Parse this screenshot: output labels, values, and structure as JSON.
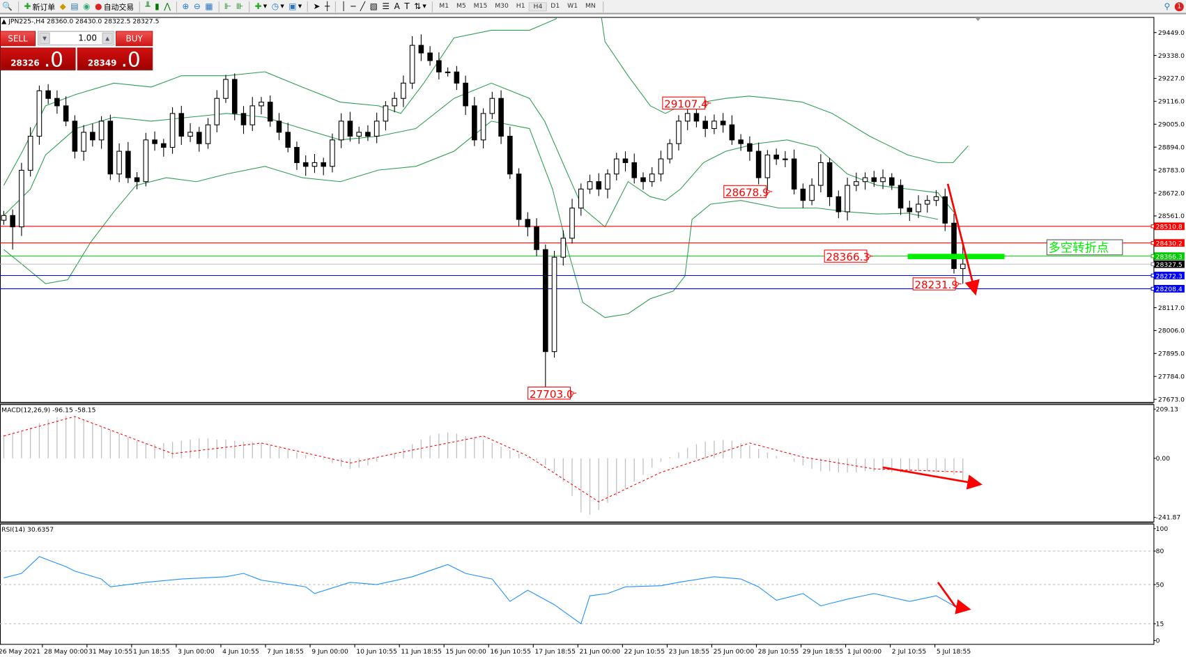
{
  "toolbar": {
    "new_order": "新订单",
    "auto_trading": "自动交易",
    "timeframes": [
      "M1",
      "M5",
      "M15",
      "M30",
      "H1",
      "H4",
      "D1",
      "W1",
      "MN"
    ],
    "active_timeframe": "H4",
    "text_tool": "A",
    "notification_count": "1"
  },
  "header": {
    "symbol": "JPN225-,H4",
    "open": "28360.0",
    "high": "28430.0",
    "low": "28322.5",
    "close": "28327.5"
  },
  "one_click": {
    "sell_label": "SELL",
    "buy_label": "BUY",
    "lot": "1.00",
    "sell_main": "28326",
    "sell_frac": ".0",
    "buy_main": "28349",
    "buy_frac": ".0"
  },
  "colors": {
    "bull_bear_candle": "#000000",
    "bands": "#2e9e4f",
    "red_line": "#ff0000",
    "green_line": "#00cc00",
    "blue_line": "#0000ff",
    "macd_hist": "#c0c0c0",
    "macd_signal": "#ff0000",
    "rsi": "#1e90ff"
  },
  "chart_data": [
    {
      "type": "candlestick",
      "title": "JPN225-,H4",
      "y_ticks": [
        "29449.0",
        "29338.0",
        "29227.0",
        "29116.0",
        "29005.0",
        "28894.0",
        "28783.0",
        "28672.0",
        "28561.0",
        "28117.0",
        "28006.0",
        "27895.0",
        "27784.0",
        "27673.0"
      ],
      "ylim": [
        27673,
        29449
      ],
      "x_ticks": [
        "26 May 2021",
        "28 May 00:00",
        "31 May 10:55",
        "1 Jun 18:55",
        "3 Jun 00:00",
        "4 Jun 10:55",
        "7 Jun 18:55",
        "9 Jun 00:00",
        "10 Jun 10:55",
        "11 Jun 18:55",
        "15 Jun 00:00",
        "16 Jun 10:55",
        "17 Jun 18:55",
        "21 Jun 00:00",
        "22 Jun 10:55",
        "23 Jun 18:55",
        "25 Jun 00:00",
        "28 Jun 10:55",
        "29 Jun 18:55",
        "1 Jul 00:00",
        "2 Jul 10:55",
        "5 Jul 18:55"
      ],
      "close": [
        28563,
        28508,
        28782,
        28947,
        29167,
        29130,
        29094,
        29020,
        28874,
        28966,
        28929,
        29020,
        28764,
        28874,
        28746,
        28727,
        28929,
        28911,
        28893,
        29057,
        28947,
        28966,
        28911,
        29002,
        29130,
        29222,
        29057,
        29002,
        29094,
        29112,
        29020,
        28966,
        28893,
        28819,
        28801,
        28819,
        28801,
        28929,
        29020,
        28947,
        28966,
        28947,
        29020,
        29094,
        29130,
        29204,
        29387,
        29350,
        29313,
        29258,
        29258,
        29204,
        29094,
        28929,
        29057,
        29130,
        28947,
        28764,
        28544,
        28508,
        28398,
        27904,
        28361,
        28453,
        28599,
        28691,
        28727,
        28691,
        28764,
        28837,
        28819,
        28746,
        28727,
        28764,
        28837,
        28911,
        29020,
        29057,
        29020,
        28984,
        29020,
        29002,
        28929,
        28911,
        28874,
        28746,
        28856,
        28837,
        28837,
        28691,
        28636,
        28709,
        28819,
        28654,
        28581,
        28709,
        28727,
        28746,
        28727,
        28746,
        28709,
        28599,
        28581,
        28618,
        28636,
        28654,
        28526,
        28306,
        28327.5
      ],
      "extremes": [
        {
          "bar": 1,
          "low": 28398
        },
        {
          "bar": 47,
          "high": 29440
        },
        {
          "bar": 61,
          "low": 27703
        },
        {
          "bar": 77,
          "high": 29107.4
        },
        {
          "bar": 86,
          "low": 28678.9
        },
        {
          "bar": 108,
          "low": 28231.9
        },
        {
          "bar": 108,
          "high": 28430
        }
      ],
      "bollinger": {
        "upper": [
          [
            0,
            28709
          ],
          [
            2.1,
            28874
          ],
          [
            4.7,
            29094
          ],
          [
            8.1,
            29149
          ],
          [
            12.4,
            29204
          ],
          [
            16.6,
            29185
          ],
          [
            20,
            29240
          ],
          [
            25.1,
            29240
          ],
          [
            29.4,
            29259
          ],
          [
            33.6,
            29185
          ],
          [
            37.9,
            29112
          ],
          [
            42.2,
            29094
          ],
          [
            44.7,
            29057
          ],
          [
            47.3,
            29204
          ],
          [
            50.7,
            29423
          ],
          [
            54.9,
            29460
          ],
          [
            59.2,
            29460
          ],
          [
            62.2,
            29515
          ],
          [
            63.4,
            29643
          ],
          [
            66.9,
            29643
          ],
          [
            67.7,
            29405
          ],
          [
            70.3,
            29240
          ],
          [
            72.8,
            29094
          ],
          [
            74.5,
            29057
          ],
          [
            76.2,
            29094
          ],
          [
            78.8,
            29112
          ],
          [
            81.3,
            29130
          ],
          [
            83.9,
            29141
          ],
          [
            86.5,
            29130
          ],
          [
            89.9,
            29112
          ],
          [
            93.3,
            29057
          ],
          [
            97.5,
            28947
          ],
          [
            101.8,
            28856
          ],
          [
            105.2,
            28819
          ],
          [
            106.9,
            28819
          ],
          [
            108.6,
            28900
          ]
        ],
        "middle": [
          [
            0,
            28563
          ],
          [
            3,
            28691
          ],
          [
            4.7,
            28856
          ],
          [
            8.1,
            28984
          ],
          [
            12.4,
            29039
          ],
          [
            16.6,
            29020
          ],
          [
            20.9,
            29039
          ],
          [
            25.1,
            29057
          ],
          [
            29.4,
            29039
          ],
          [
            33.6,
            28984
          ],
          [
            37.9,
            28929
          ],
          [
            42.2,
            28947
          ],
          [
            46.4,
            28984
          ],
          [
            50.7,
            29130
          ],
          [
            54.9,
            29204
          ],
          [
            59.2,
            29130
          ],
          [
            60.9,
            29020
          ],
          [
            63.5,
            28764
          ],
          [
            65.2,
            28599
          ],
          [
            67.7,
            28508
          ],
          [
            70.3,
            28727
          ],
          [
            72.8,
            28654
          ],
          [
            74.5,
            28636
          ],
          [
            76.2,
            28691
          ],
          [
            78.8,
            28819
          ],
          [
            81.3,
            28874
          ],
          [
            84.8,
            28911
          ],
          [
            88.2,
            28929
          ],
          [
            91.6,
            28893
          ],
          [
            95,
            28764
          ],
          [
            98.4,
            28709
          ],
          [
            101.8,
            28691
          ],
          [
            105.2,
            28673
          ],
          [
            107.3,
            28563
          ]
        ],
        "lower": [
          [
            0,
            28398
          ],
          [
            2.1,
            28325
          ],
          [
            4.7,
            28233
          ],
          [
            7.2,
            28252
          ],
          [
            9.8,
            28435
          ],
          [
            12.4,
            28581
          ],
          [
            14.9,
            28709
          ],
          [
            18.3,
            28746
          ],
          [
            21.7,
            28727
          ],
          [
            25.1,
            28764
          ],
          [
            29.4,
            28801
          ],
          [
            33.6,
            28746
          ],
          [
            37.9,
            28727
          ],
          [
            42.2,
            28783
          ],
          [
            46.4,
            28801
          ],
          [
            50.7,
            28874
          ],
          [
            54.9,
            29020
          ],
          [
            59.2,
            28984
          ],
          [
            61.8,
            28691
          ],
          [
            63.5,
            28398
          ],
          [
            65.2,
            28142
          ],
          [
            67.7,
            28069
          ],
          [
            70.3,
            28087
          ],
          [
            72.8,
            28160
          ],
          [
            75.4,
            28197
          ],
          [
            76.7,
            28270
          ],
          [
            77.5,
            28544
          ],
          [
            79.6,
            28618
          ],
          [
            83,
            28636
          ],
          [
            87.3,
            28599
          ],
          [
            91.6,
            28599
          ],
          [
            95,
            28581
          ],
          [
            98.4,
            28570
          ],
          [
            101.8,
            28574
          ],
          [
            105.2,
            28544
          ]
        ]
      },
      "hlines": [
        {
          "price": "28510.8",
          "color": "#ff0000"
        },
        {
          "price": "28430.2",
          "color": "#ff0000"
        },
        {
          "price": "28366.3",
          "color": "#00cc00"
        },
        {
          "price": "28327.5",
          "color": "#000000"
        },
        {
          "price": "28272.3",
          "color": "#0000ff"
        },
        {
          "price": "28208.4",
          "color": "#0000ff"
        }
      ],
      "price_labels": [
        "29107.4",
        "28678.9",
        "28366.3",
        "28231.9",
        "27703.0"
      ],
      "annotation_text": "多空转折点"
    },
    {
      "type": "bar+line",
      "title": "MACD(12,26,9) -96.15 -58.15",
      "y_ticks": [
        "209.13",
        "0.00",
        "-241.87"
      ],
      "ylim": [
        -241.87,
        209.13
      ],
      "histogram": [
        100,
        105,
        115,
        130,
        150,
        165,
        175,
        180,
        175,
        165,
        150,
        135,
        120,
        105,
        90,
        75,
        65,
        60,
        65,
        70,
        75,
        80,
        85,
        85,
        80,
        80,
        75,
        70,
        70,
        65,
        55,
        45,
        35,
        25,
        15,
        5,
        -5,
        -20,
        -35,
        -45,
        -40,
        -30,
        -15,
        0,
        20,
        40,
        60,
        80,
        95,
        105,
        110,
        105,
        95,
        90,
        80,
        65,
        50,
        35,
        20,
        5,
        -10,
        -30,
        -60,
        -100,
        -160,
        -230,
        -240,
        -220,
        -190,
        -160,
        -130,
        -100,
        -70,
        -40,
        -15,
        5,
        25,
        45,
        60,
        70,
        75,
        78,
        75,
        65,
        55,
        40,
        25,
        10,
        0,
        -15,
        -30,
        -45,
        -55,
        -55,
        -60,
        -60,
        -60,
        -55,
        -55,
        -55,
        -60,
        -60,
        -55,
        -55,
        -55,
        -60,
        -60,
        -70,
        -96.15
      ],
      "signal": [
        [
          0,
          95
        ],
        [
          8,
          178
        ],
        [
          19,
          20
        ],
        [
          29,
          65
        ],
        [
          39,
          -20
        ],
        [
          44,
          20
        ],
        [
          54,
          95
        ],
        [
          59,
          10
        ],
        [
          67,
          -185
        ],
        [
          74,
          -60
        ],
        [
          84,
          65
        ],
        [
          90,
          5
        ],
        [
          98,
          -45
        ],
        [
          108,
          -58.15
        ]
      ]
    },
    {
      "type": "line",
      "title": "RSI(14) 30.6357",
      "y_ticks": [
        "100",
        "80",
        "50",
        "15",
        "0"
      ],
      "ylim": [
        0,
        100
      ],
      "levels": [
        80,
        50,
        15
      ],
      "values": [
        [
          0,
          56
        ],
        [
          2,
          60
        ],
        [
          4,
          75
        ],
        [
          7,
          66
        ],
        [
          8,
          62
        ],
        [
          11,
          55
        ],
        [
          12,
          48
        ],
        [
          16,
          52
        ],
        [
          20,
          55
        ],
        [
          25,
          57
        ],
        [
          27,
          60
        ],
        [
          29,
          54
        ],
        [
          34,
          48
        ],
        [
          35,
          42
        ],
        [
          39,
          52
        ],
        [
          42,
          50
        ],
        [
          46,
          57
        ],
        [
          50,
          68
        ],
        [
          52,
          60
        ],
        [
          55,
          55
        ],
        [
          57,
          35
        ],
        [
          59,
          45
        ],
        [
          62,
          32
        ],
        [
          65,
          15
        ],
        [
          66,
          40
        ],
        [
          68,
          42
        ],
        [
          70,
          48
        ],
        [
          74,
          49
        ],
        [
          76,
          52
        ],
        [
          80,
          57
        ],
        [
          83,
          55
        ],
        [
          85,
          48
        ],
        [
          87,
          36
        ],
        [
          90,
          42
        ],
        [
          92,
          31
        ],
        [
          95,
          37
        ],
        [
          98,
          42
        ],
        [
          102,
          35
        ],
        [
          105,
          40
        ],
        [
          107,
          31
        ],
        [
          108,
          30.6357
        ]
      ]
    }
  ]
}
